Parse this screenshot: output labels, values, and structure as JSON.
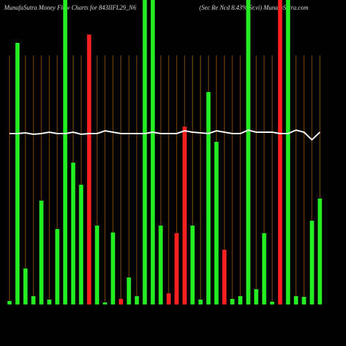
{
  "chart_data": {
    "type": "bar",
    "title": "MunafaSutra  Money Flow  Charts for 843IIFL29_N6",
    "subtitle": "(Sec Re   Ncd 8.43%  Sr.vi) MunafaSutra.com",
    "categories": [
      null,
      null,
      null,
      null,
      null,
      null,
      null,
      null,
      null,
      null,
      null,
      null,
      null,
      null,
      null,
      null,
      null,
      null,
      null,
      null,
      null,
      null,
      null,
      null,
      null,
      null,
      null,
      null,
      null,
      null,
      null,
      null,
      null,
      null,
      null,
      null,
      null,
      null,
      null,
      null
    ],
    "values": [
      5,
      378,
      52,
      12,
      150,
      7,
      109,
      440,
      205,
      173,
      390,
      114,
      3,
      104,
      8,
      39,
      12,
      440,
      440,
      114,
      16,
      103,
      257,
      114,
      7,
      307,
      235,
      79,
      8,
      12,
      440,
      22,
      103,
      4,
      440,
      440,
      12,
      11,
      121,
      153
    ],
    "colors": [
      "#22ee22",
      "#22ee22",
      "#22ee22",
      "#22ee22",
      "#22ee22",
      "#22ee22",
      "#22ee22",
      "#22ee22",
      "#22ee22",
      "#22ee22",
      "#ff2020",
      "#22ee22",
      "#22ee22",
      "#22ee22",
      "#ff2020",
      "#22ee22",
      "#22ee22",
      "#22ee22",
      "#22ee22",
      "#22ee22",
      "#ff2020",
      "#ff2020",
      "#ff2020",
      "#22ee22",
      "#22ee22",
      "#22ee22",
      "#22ee22",
      "#ff2020",
      "#22ee22",
      "#22ee22",
      "#22ee22",
      "#22ee22",
      "#22ee22",
      "#22ee22",
      "#ff2020",
      "#22ee22",
      "#22ee22",
      "#22ee22",
      "#22ee22",
      "#22ee22"
    ],
    "ylim": [
      0,
      440
    ],
    "line_values": [
      247,
      247,
      248,
      246,
      247,
      249,
      247,
      247,
      249,
      246,
      247,
      247,
      251,
      249,
      247,
      247,
      247,
      247,
      249,
      247,
      247,
      247,
      251,
      249,
      248,
      247,
      251,
      249,
      247,
      247,
      252,
      249,
      249,
      249,
      247,
      247,
      252,
      249,
      238,
      249
    ],
    "line_color": "#ffffff",
    "grid": true,
    "grid_color": "#8a4a00"
  }
}
